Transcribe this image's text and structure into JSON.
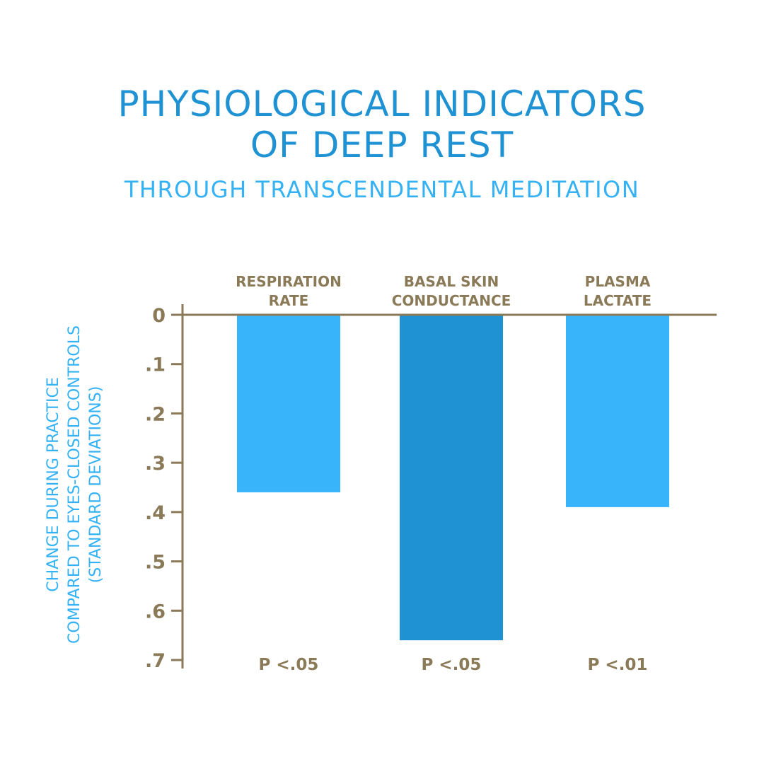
{
  "header": {
    "title_lines": [
      "PHYSIOLOGICAL INDICATORS",
      "OF DEEP REST"
    ],
    "subtitle": "THROUGH TRANSCENDENTAL MEDITATION"
  },
  "colors": {
    "title": "#1f92d3",
    "subtitle": "#35b2f3",
    "axis": "#8a7a58",
    "axis_text": "#8a7a58",
    "ylabel": "#35b2f3",
    "bar_light": "#38b4fb",
    "bar_dark": "#1f92d3"
  },
  "chart_data": {
    "type": "bar",
    "categories": [
      [
        "RESPIRATION",
        "RATE"
      ],
      [
        "BASAL SKIN",
        "CONDUCTANCE"
      ],
      [
        "PLASMA",
        "LACTATE"
      ]
    ],
    "values": [
      0.36,
      0.66,
      0.39
    ],
    "bar_colors": [
      "#38b4fb",
      "#1f92d3",
      "#38b4fb"
    ],
    "significance": [
      "P <.05",
      "P <.05",
      "P <.01"
    ],
    "yticks": [
      "0",
      ".1",
      ".2",
      ".3",
      ".4",
      ".5",
      ".6",
      ".7"
    ],
    "ytick_values": [
      0,
      0.1,
      0.2,
      0.3,
      0.4,
      0.5,
      0.6,
      0.7
    ],
    "ylim": [
      0,
      0.7
    ],
    "ylabel_lines": [
      "CHANGE DURING PRACTICE",
      "COMPARED TO EYES-CLOSED CONTROLS",
      "(STANDARD DEVIATIONS)"
    ],
    "xlabel": "",
    "grid": false,
    "orientation": "downward"
  }
}
